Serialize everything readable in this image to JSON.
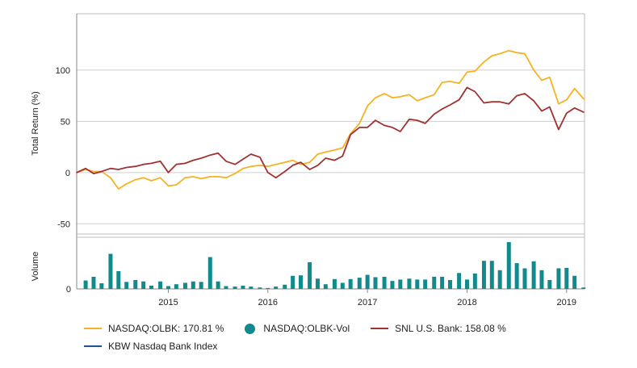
{
  "chart_data": [
    {
      "type": "line",
      "ylabel": "Total Return (%)",
      "ylim": [
        -60,
        155
      ],
      "yticks": [
        -50,
        0,
        50,
        100
      ],
      "x_ticks": [
        2015,
        2016,
        2017,
        2018,
        2019
      ],
      "xlim": [
        2014.08,
        2019.18
      ],
      "grid": true,
      "series": [
        {
          "name": "NASDAQ:OLBK: 170.81 %",
          "color": "#F5B324",
          "x": [
            2014.08,
            2014.17,
            2014.25,
            2014.33,
            2014.42,
            2014.5,
            2014.58,
            2014.67,
            2014.75,
            2014.83,
            2014.92,
            2015.0,
            2015.08,
            2015.17,
            2015.25,
            2015.33,
            2015.42,
            2015.5,
            2015.58,
            2015.67,
            2015.75,
            2015.83,
            2015.92,
            2016.0,
            2016.08,
            2016.17,
            2016.25,
            2016.33,
            2016.42,
            2016.5,
            2016.58,
            2016.67,
            2016.75,
            2016.83,
            2016.92,
            2017.0,
            2017.08,
            2017.17,
            2017.25,
            2017.33,
            2017.42,
            2017.5,
            2017.58,
            2017.67,
            2017.75,
            2017.83,
            2017.92,
            2018.0,
            2018.08,
            2018.17,
            2018.25,
            2018.33,
            2018.42,
            2018.5,
            2018.58,
            2018.67,
            2018.75,
            2018.83,
            2018.92,
            2019.0,
            2019.08,
            2019.17
          ],
          "y": [
            0,
            3,
            1,
            1,
            -5,
            -16,
            -11,
            -7,
            -5,
            -8,
            -5,
            -13,
            -12,
            -5,
            -4,
            -6,
            -4,
            -4,
            -5,
            -1,
            4,
            6,
            7,
            6,
            8,
            10,
            12,
            8,
            10,
            18,
            20,
            22,
            24,
            38,
            48,
            65,
            73,
            77,
            73,
            74,
            76,
            70,
            73,
            76,
            88,
            89,
            87,
            98,
            99,
            108,
            114,
            116,
            119,
            117,
            116,
            100,
            90,
            93,
            67,
            71,
            82,
            72
          ]
        },
        {
          "name": "SNL U.S. Bank: 158.08 %",
          "color": "#9E3333",
          "x": [
            2014.08,
            2014.17,
            2014.25,
            2014.33,
            2014.42,
            2014.5,
            2014.58,
            2014.67,
            2014.75,
            2014.83,
            2014.92,
            2015.0,
            2015.08,
            2015.17,
            2015.25,
            2015.33,
            2015.42,
            2015.5,
            2015.58,
            2015.67,
            2015.75,
            2015.83,
            2015.92,
            2016.0,
            2016.08,
            2016.17,
            2016.25,
            2016.33,
            2016.42,
            2016.5,
            2016.58,
            2016.67,
            2016.75,
            2016.83,
            2016.92,
            2017.0,
            2017.08,
            2017.17,
            2017.25,
            2017.33,
            2017.42,
            2017.5,
            2017.58,
            2017.67,
            2017.75,
            2017.83,
            2017.92,
            2018.0,
            2018.08,
            2018.17,
            2018.25,
            2018.33,
            2018.42,
            2018.5,
            2018.58,
            2018.67,
            2018.75,
            2018.83,
            2018.92,
            2019.0,
            2019.08,
            2019.17
          ],
          "y": [
            0,
            4,
            -1,
            1,
            4,
            3,
            5,
            6,
            8,
            9,
            11,
            0,
            8,
            9,
            12,
            14,
            17,
            19,
            11,
            8,
            13,
            18,
            15,
            0,
            -5,
            1,
            7,
            10,
            3,
            7,
            14,
            12,
            16,
            37,
            44,
            44,
            51,
            46,
            44,
            40,
            52,
            51,
            48,
            57,
            62,
            66,
            71,
            83,
            79,
            68,
            69,
            69,
            67,
            75,
            77,
            70,
            60,
            64,
            42,
            58,
            63,
            59
          ]
        },
        {
          "name": "KBW Nasdaq Bank Index",
          "color": "#1F4E9E",
          "x": [],
          "y": []
        }
      ]
    },
    {
      "type": "bar",
      "ylabel": "Volume",
      "ytick_label": "0",
      "series": [
        {
          "name": "NASDAQ:OLBK-Vol",
          "color": "#108A8C",
          "x": [
            2014.17,
            2014.25,
            2014.33,
            2014.42,
            2014.5,
            2014.58,
            2014.67,
            2014.75,
            2014.83,
            2014.92,
            2015.0,
            2015.08,
            2015.17,
            2015.25,
            2015.33,
            2015.42,
            2015.5,
            2015.58,
            2015.67,
            2015.75,
            2015.83,
            2015.92,
            2016.0,
            2016.08,
            2016.17,
            2016.25,
            2016.33,
            2016.42,
            2016.5,
            2016.58,
            2016.67,
            2016.75,
            2016.83,
            2016.92,
            2017.0,
            2017.08,
            2017.17,
            2017.25,
            2017.33,
            2017.42,
            2017.5,
            2017.58,
            2017.67,
            2017.75,
            2017.83,
            2017.92,
            2018.0,
            2018.08,
            2018.17,
            2018.25,
            2018.33,
            2018.42,
            2018.5,
            2018.58,
            2018.67,
            2018.75,
            2018.83,
            2018.92,
            2019.0,
            2019.08,
            2019.17
          ],
          "y": [
            0.18,
            0.26,
            0.12,
            0.75,
            0.38,
            0.15,
            0.19,
            0.16,
            0.07,
            0.16,
            0.06,
            0.1,
            0.13,
            0.16,
            0.15,
            0.68,
            0.16,
            0.06,
            0.05,
            0.07,
            0.05,
            0.03,
            0.02,
            0.05,
            0.09,
            0.28,
            0.29,
            0.57,
            0.22,
            0.1,
            0.21,
            0.13,
            0.21,
            0.24,
            0.3,
            0.25,
            0.26,
            0.17,
            0.2,
            0.22,
            0.2,
            0.2,
            0.26,
            0.26,
            0.19,
            0.34,
            0.2,
            0.33,
            0.6,
            0.6,
            0.4,
            1.0,
            0.55,
            0.44,
            0.59,
            0.4,
            0.19,
            0.44,
            0.45,
            0.28,
            0.03
          ]
        }
      ]
    }
  ]
}
